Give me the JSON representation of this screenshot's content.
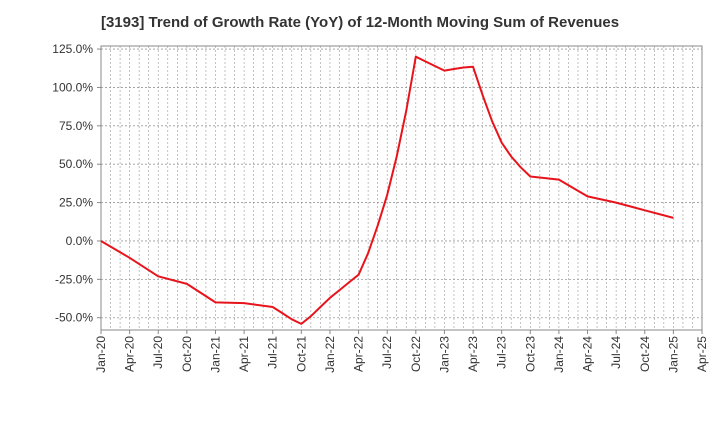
{
  "chart_data": {
    "type": "line",
    "title": "[3193]  Trend of Growth Rate (YoY) of 12-Month Moving Sum of Revenues",
    "xlabel": "",
    "ylabel": "",
    "x_ticks": [
      "Jan-20",
      "Apr-20",
      "Jul-20",
      "Oct-20",
      "Jan-21",
      "Apr-21",
      "Jul-21",
      "Oct-21",
      "Jan-22",
      "Apr-22",
      "Jul-22",
      "Oct-22",
      "Jan-23",
      "Apr-23",
      "Jul-23",
      "Oct-23",
      "Jan-24",
      "Apr-24",
      "Jul-24",
      "Oct-24",
      "Jan-25",
      "Apr-25"
    ],
    "y_ticks": [
      -50,
      -25,
      0,
      25,
      50,
      75,
      100,
      125
    ],
    "y_tick_labels": [
      "-50.0%",
      "-25.0%",
      "0.0%",
      "25.0%",
      "50.0%",
      "75.0%",
      "100.0%",
      "125.0%"
    ],
    "ylim": [
      -58,
      127
    ],
    "grid": true,
    "line_color": "#e8141c",
    "series": [
      {
        "x": [
          "Jan-20",
          "Apr-20",
          "Jul-20",
          "Oct-20",
          "Jan-21",
          "Apr-21",
          "Jul-21",
          "Aug-21",
          "Sep-21",
          "Oct-21",
          "Nov-21",
          "Dec-21",
          "Jan-22",
          "Feb-22",
          "Mar-22",
          "Apr-22",
          "May-22",
          "Jun-22",
          "Jul-22",
          "Aug-22",
          "Sep-22",
          "Oct-22",
          "Nov-22",
          "Dec-22",
          "Jan-23",
          "Feb-23",
          "Mar-23",
          "Apr-23",
          "May-23",
          "Jun-23",
          "Jul-23",
          "Aug-23",
          "Sep-23",
          "Oct-23",
          "Jan-24",
          "Apr-24",
          "Jul-24",
          "Oct-24",
          "Jan-25"
        ],
        "values": [
          0,
          -11,
          -23,
          -28,
          -40,
          -40.5,
          -43,
          -47,
          -51,
          -54,
          -49,
          -43,
          -37,
          -32,
          -27,
          -22,
          -8,
          10,
          30,
          55,
          85,
          120,
          117,
          114,
          111,
          112,
          113,
          113.5,
          95,
          78,
          64,
          55,
          48,
          42,
          40,
          29,
          25,
          20,
          15
        ]
      }
    ]
  }
}
